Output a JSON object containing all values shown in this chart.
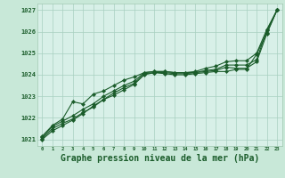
{
  "bg_color": "#c8e8d8",
  "plot_bg_color": "#d8f0e8",
  "grid_color": "#a8cfc0",
  "line_color": "#1a5c2a",
  "marker_color": "#1a5c2a",
  "border_color": "#a0c8b0",
  "xlabel": "Graphe pression niveau de la mer (hPa)",
  "xlabel_fontsize": 7,
  "xlim": [
    -0.5,
    23.5
  ],
  "ylim": [
    1020.7,
    1027.3
  ],
  "yticks": [
    1021,
    1022,
    1023,
    1024,
    1025,
    1026,
    1027
  ],
  "xticks": [
    0,
    1,
    2,
    3,
    4,
    5,
    6,
    7,
    8,
    9,
    10,
    11,
    12,
    13,
    14,
    15,
    16,
    17,
    18,
    19,
    20,
    21,
    22,
    23
  ],
  "series": [
    [
      1021.0,
      1021.4,
      1021.65,
      1021.9,
      1022.2,
      1022.55,
      1022.85,
      1023.05,
      1023.3,
      1023.55,
      1024.0,
      1024.1,
      1024.05,
      1024.0,
      1024.0,
      1024.05,
      1024.1,
      1024.15,
      1024.15,
      1024.25,
      1024.25,
      1024.95,
      1025.95,
      1027.0
    ],
    [
      1021.05,
      1021.5,
      1021.75,
      1021.95,
      1022.25,
      1022.5,
      1022.85,
      1023.15,
      1023.4,
      1023.6,
      1024.05,
      1024.1,
      1024.1,
      1024.05,
      1024.05,
      1024.1,
      1024.15,
      1024.2,
      1024.35,
      1024.3,
      1024.3,
      1024.6,
      1025.9,
      1027.0
    ],
    [
      1021.1,
      1021.6,
      1021.85,
      1022.1,
      1022.4,
      1022.65,
      1023.0,
      1023.25,
      1023.5,
      1023.7,
      1024.1,
      1024.15,
      1024.15,
      1024.1,
      1024.1,
      1024.1,
      1024.2,
      1024.25,
      1024.45,
      1024.45,
      1024.45,
      1024.7,
      1026.05,
      1027.0
    ],
    [
      1021.15,
      1021.65,
      1021.95,
      1022.75,
      1022.65,
      1023.1,
      1023.25,
      1023.5,
      1023.75,
      1023.9,
      1024.1,
      1024.15,
      1024.15,
      1024.1,
      1024.1,
      1024.15,
      1024.3,
      1024.4,
      1024.6,
      1024.65,
      1024.65,
      1025.0,
      1026.1,
      1027.0
    ]
  ]
}
